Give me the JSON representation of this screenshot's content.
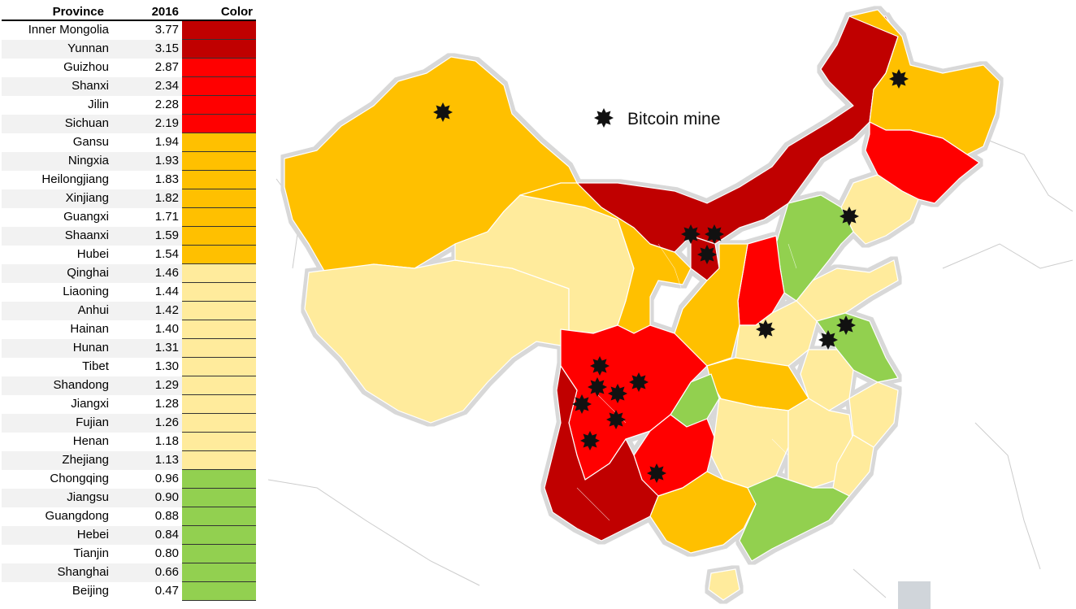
{
  "table": {
    "headers": {
      "province": "Province",
      "year": "2016",
      "color": "Color"
    },
    "rows": [
      {
        "province": "Inner Mongolia",
        "value": "3.77",
        "color": "#c00000"
      },
      {
        "province": "Yunnan",
        "value": "3.15",
        "color": "#c00000"
      },
      {
        "province": "Guizhou",
        "value": "2.87",
        "color": "#ff0000"
      },
      {
        "province": "Shanxi",
        "value": "2.34",
        "color": "#ff0000"
      },
      {
        "province": "Jilin",
        "value": "2.28",
        "color": "#ff0000"
      },
      {
        "province": "Sichuan",
        "value": "2.19",
        "color": "#ff0000"
      },
      {
        "province": "Gansu",
        "value": "1.94",
        "color": "#ffc000"
      },
      {
        "province": "Ningxia",
        "value": "1.93",
        "color": "#ffc000"
      },
      {
        "province": "Heilongjiang",
        "value": "1.83",
        "color": "#ffc000"
      },
      {
        "province": "Xinjiang",
        "value": "1.82",
        "color": "#ffc000"
      },
      {
        "province": "Guangxi",
        "value": "1.71",
        "color": "#ffc000"
      },
      {
        "province": "Shaanxi",
        "value": "1.59",
        "color": "#ffc000"
      },
      {
        "province": "Hubei",
        "value": "1.54",
        "color": "#ffc000"
      },
      {
        "province": "Qinghai",
        "value": "1.46",
        "color": "#ffeb9c"
      },
      {
        "province": "Liaoning",
        "value": "1.44",
        "color": "#ffeb9c"
      },
      {
        "province": "Anhui",
        "value": "1.42",
        "color": "#ffeb9c"
      },
      {
        "province": "Hainan",
        "value": "1.40",
        "color": "#ffeb9c"
      },
      {
        "province": "Hunan",
        "value": "1.31",
        "color": "#ffeb9c"
      },
      {
        "province": "Tibet",
        "value": "1.30",
        "color": "#ffeb9c"
      },
      {
        "province": "Shandong",
        "value": "1.29",
        "color": "#ffeb9c"
      },
      {
        "province": "Jiangxi",
        "value": "1.28",
        "color": "#ffeb9c"
      },
      {
        "province": "Fujian",
        "value": "1.26",
        "color": "#ffeb9c"
      },
      {
        "province": "Henan",
        "value": "1.18",
        "color": "#ffeb9c"
      },
      {
        "province": "Zhejiang",
        "value": "1.13",
        "color": "#ffeb9c"
      },
      {
        "province": "Chongqing",
        "value": "0.96",
        "color": "#92d050"
      },
      {
        "province": "Jiangsu",
        "value": "0.90",
        "color": "#92d050"
      },
      {
        "province": "Guangdong",
        "value": "0.88",
        "color": "#92d050"
      },
      {
        "province": "Hebei",
        "value": "0.84",
        "color": "#92d050"
      },
      {
        "province": "Tianjin",
        "value": "0.80",
        "color": "#92d050"
      },
      {
        "province": "Shanghai",
        "value": "0.66",
        "color": "#92d050"
      },
      {
        "province": "Beijing",
        "value": "0.47",
        "color": "#92d050"
      }
    ]
  },
  "map": {
    "legend_label": "Bitcoin mine",
    "legend_icon": "star-icon",
    "region_colors": {
      "dark_red": "#c00000",
      "red": "#ff0000",
      "orange": "#ffc000",
      "light_yellow": "#ffeb9c",
      "green": "#92d050"
    }
  }
}
